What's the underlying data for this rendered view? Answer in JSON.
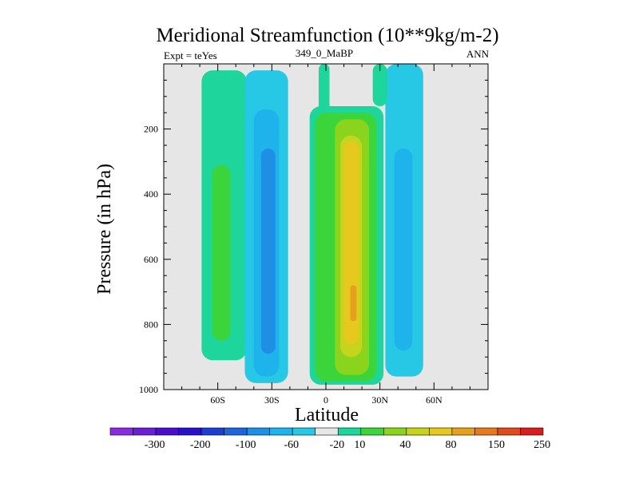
{
  "chart_data": {
    "type": "contour",
    "title": "Meridional Streamfunction (10**9kg/m-2)",
    "subtitle_left": "Expt = teYes",
    "subtitle_center": "349_0_MaBP",
    "subtitle_right": "ANN",
    "xlabel": "Latitude",
    "ylabel": "Pressure (in hPa)",
    "xlim": [
      -90,
      90
    ],
    "ylim": [
      1000,
      0
    ],
    "x_ticks": [
      {
        "value": -60,
        "label": "60S"
      },
      {
        "value": -30,
        "label": "30S"
      },
      {
        "value": 0,
        "label": "0"
      },
      {
        "value": 30,
        "label": "30N"
      },
      {
        "value": 60,
        "label": "60N"
      }
    ],
    "y_ticks": [
      {
        "value": 200,
        "label": "200"
      },
      {
        "value": 400,
        "label": "400"
      },
      {
        "value": 600,
        "label": "600"
      },
      {
        "value": 800,
        "label": "800"
      },
      {
        "value": 1000,
        "label": "1000"
      }
    ],
    "colorbar": {
      "colors": [
        "#8a2be2",
        "#6a1fd6",
        "#4b0fcc",
        "#2a10c8",
        "#1c3fd1",
        "#1e64dc",
        "#1f8fe6",
        "#1fb3ec",
        "#27c7e6",
        "#e6e6e6",
        "#1ed59b",
        "#3bd43b",
        "#8bd41e",
        "#c7d41e",
        "#e6c81e",
        "#e6a01e",
        "#e6781e",
        "#e04b1e",
        "#d61e1e"
      ],
      "labels": [
        {
          "after_index": 1,
          "text": "-300"
        },
        {
          "after_index": 3,
          "text": "-200"
        },
        {
          "after_index": 5,
          "text": "-100"
        },
        {
          "after_index": 7,
          "text": "-60"
        },
        {
          "after_index": 9,
          "text": "-20"
        },
        {
          "after_index": 10,
          "text": "10"
        },
        {
          "after_index": 12,
          "text": "40"
        },
        {
          "after_index": 14,
          "text": "80"
        },
        {
          "after_index": 16,
          "text": "150"
        },
        {
          "after_index": 18,
          "text": "250"
        }
      ]
    },
    "cells": [
      {
        "name": "sh-polar-cell-outer",
        "lat": [
          -69,
          -44
        ],
        "p": [
          20,
          910
        ],
        "color": "#1ed59b"
      },
      {
        "name": "sh-polar-cell-core",
        "lat": [
          -63,
          -53
        ],
        "p": [
          310,
          850
        ],
        "color": "#3bd43b"
      },
      {
        "name": "sh-ferrel-cell-outer",
        "lat": [
          -45,
          -21
        ],
        "p": [
          20,
          980
        ],
        "color": "#27c7e6"
      },
      {
        "name": "sh-ferrel-cell-mid",
        "lat": [
          -40,
          -26
        ],
        "p": [
          140,
          960
        ],
        "color": "#1fb3ec"
      },
      {
        "name": "sh-ferrel-cell-core",
        "lat": [
          -36,
          -28
        ],
        "p": [
          260,
          890
        ],
        "color": "#1f8fe6"
      },
      {
        "name": "equatorial-band",
        "lat": [
          -4,
          2
        ],
        "p": [
          0,
          980
        ],
        "color": "#1ed59b"
      },
      {
        "name": "hadley-cell-outer",
        "lat": [
          -9,
          32
        ],
        "p": [
          130,
          985
        ],
        "color": "#1ed59b"
      },
      {
        "name": "hadley-cell-green",
        "lat": [
          -6,
          28
        ],
        "p": [
          150,
          975
        ],
        "color": "#3bd43b"
      },
      {
        "name": "hadley-cell-lime",
        "lat": [
          5,
          24
        ],
        "p": [
          170,
          955
        ],
        "color": "#8bd41e"
      },
      {
        "name": "hadley-cell-yellow",
        "lat": [
          8,
          20
        ],
        "p": [
          220,
          900
        ],
        "color": "#c7d41e"
      },
      {
        "name": "hadley-cell-gold",
        "lat": [
          10,
          18
        ],
        "p": [
          240,
          860
        ],
        "color": "#e6c81e"
      },
      {
        "name": "hadley-cell-peak",
        "lat": [
          13.5,
          17
        ],
        "p": [
          680,
          790
        ],
        "color": "#e6a01e"
      },
      {
        "name": "nh-ferrel-cell-outer",
        "lat": [
          33,
          54
        ],
        "p": [
          0,
          960
        ],
        "color": "#27c7e6"
      },
      {
        "name": "nh-ferrel-cell-core",
        "lat": [
          38,
          48
        ],
        "p": [
          260,
          880
        ],
        "color": "#1fb3ec"
      },
      {
        "name": "nh-polar-cell",
        "lat": [
          26,
          34
        ],
        "p": [
          0,
          130
        ],
        "color": "#1ed59b"
      }
    ]
  }
}
